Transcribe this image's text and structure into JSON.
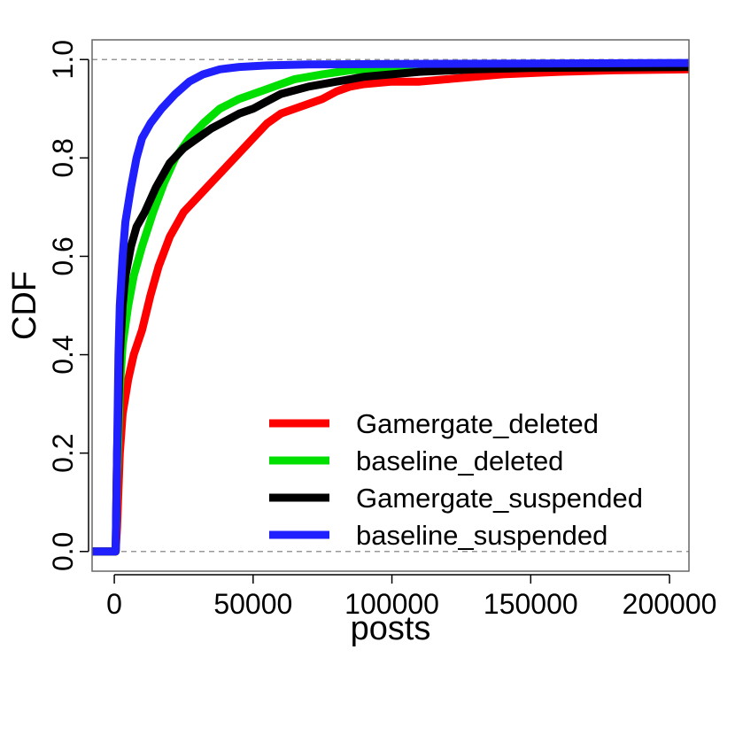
{
  "chart_data": {
    "type": "line",
    "title": "",
    "xlabel": "posts",
    "ylabel": "CDF",
    "xlim": [
      -8000,
      207000
    ],
    "ylim": [
      -0.04,
      1.04
    ],
    "xticks": [
      0,
      50000,
      100000,
      150000,
      200000
    ],
    "xtick_labels": [
      "0",
      "50000",
      "100000",
      "150000",
      "200000"
    ],
    "yticks": [
      0.0,
      0.2,
      0.4,
      0.6,
      0.8,
      1.0
    ],
    "ytick_labels": [
      "0.0",
      "0.2",
      "0.4",
      "0.6",
      "0.8",
      "1.0"
    ],
    "reference_lines": [
      0.0,
      1.0
    ],
    "grid": false,
    "legend_position": "bottom-right",
    "series": [
      {
        "name": "Gamergate_deleted",
        "color": "#ff0000",
        "points": [
          [
            -8000,
            0
          ],
          [
            0,
            0
          ],
          [
            500,
            0
          ],
          [
            1000,
            0.05
          ],
          [
            2000,
            0.2
          ],
          [
            3000,
            0.28
          ],
          [
            5000,
            0.35
          ],
          [
            7000,
            0.4
          ],
          [
            10000,
            0.45
          ],
          [
            13000,
            0.52
          ],
          [
            16000,
            0.58
          ],
          [
            20000,
            0.64
          ],
          [
            25000,
            0.69
          ],
          [
            30000,
            0.72
          ],
          [
            35000,
            0.75
          ],
          [
            40000,
            0.78
          ],
          [
            45000,
            0.81
          ],
          [
            50000,
            0.84
          ],
          [
            55000,
            0.87
          ],
          [
            60000,
            0.89
          ],
          [
            65000,
            0.9
          ],
          [
            70000,
            0.91
          ],
          [
            75000,
            0.92
          ],
          [
            80000,
            0.935
          ],
          [
            85000,
            0.945
          ],
          [
            90000,
            0.95
          ],
          [
            100000,
            0.955
          ],
          [
            110000,
            0.955
          ],
          [
            120000,
            0.96
          ],
          [
            130000,
            0.965
          ],
          [
            140000,
            0.97
          ],
          [
            160000,
            0.975
          ],
          [
            180000,
            0.978
          ],
          [
            207000,
            0.98
          ]
        ]
      },
      {
        "name": "baseline_deleted",
        "color": "#00e000",
        "points": [
          [
            -8000,
            0
          ],
          [
            0,
            0
          ],
          [
            500,
            0
          ],
          [
            1000,
            0.15
          ],
          [
            2000,
            0.33
          ],
          [
            3000,
            0.42
          ],
          [
            5000,
            0.5
          ],
          [
            7000,
            0.56
          ],
          [
            10000,
            0.62
          ],
          [
            14000,
            0.69
          ],
          [
            18000,
            0.75
          ],
          [
            22000,
            0.8
          ],
          [
            27000,
            0.84
          ],
          [
            32000,
            0.87
          ],
          [
            38000,
            0.9
          ],
          [
            45000,
            0.92
          ],
          [
            55000,
            0.94
          ],
          [
            65000,
            0.96
          ],
          [
            75000,
            0.97
          ],
          [
            85000,
            0.978
          ],
          [
            100000,
            0.983
          ],
          [
            130000,
            0.986
          ],
          [
            207000,
            0.988
          ]
        ]
      },
      {
        "name": "Gamergate_suspended",
        "color": "#000000",
        "points": [
          [
            -8000,
            0
          ],
          [
            0,
            0
          ],
          [
            500,
            0
          ],
          [
            1000,
            0.2
          ],
          [
            2000,
            0.4
          ],
          [
            3000,
            0.5
          ],
          [
            4000,
            0.56
          ],
          [
            6000,
            0.62
          ],
          [
            8000,
            0.66
          ],
          [
            11000,
            0.69
          ],
          [
            15000,
            0.74
          ],
          [
            20000,
            0.79
          ],
          [
            25000,
            0.82
          ],
          [
            30000,
            0.84
          ],
          [
            35000,
            0.86
          ],
          [
            40000,
            0.875
          ],
          [
            45000,
            0.89
          ],
          [
            50000,
            0.9
          ],
          [
            55000,
            0.915
          ],
          [
            60000,
            0.93
          ],
          [
            70000,
            0.945
          ],
          [
            80000,
            0.955
          ],
          [
            90000,
            0.965
          ],
          [
            100000,
            0.97
          ],
          [
            110000,
            0.975
          ],
          [
            130000,
            0.98
          ],
          [
            150000,
            0.983
          ],
          [
            207000,
            0.985
          ]
        ]
      },
      {
        "name": "baseline_suspended",
        "color": "#2020ff",
        "points": [
          [
            -8000,
            0
          ],
          [
            0,
            0
          ],
          [
            500,
            0
          ],
          [
            1000,
            0.2
          ],
          [
            1500,
            0.4
          ],
          [
            2000,
            0.5
          ],
          [
            3000,
            0.6
          ],
          [
            4000,
            0.67
          ],
          [
            6000,
            0.74
          ],
          [
            8000,
            0.8
          ],
          [
            10000,
            0.84
          ],
          [
            13000,
            0.87
          ],
          [
            17000,
            0.9
          ],
          [
            22000,
            0.93
          ],
          [
            27000,
            0.955
          ],
          [
            32000,
            0.97
          ],
          [
            38000,
            0.98
          ],
          [
            45000,
            0.985
          ],
          [
            55000,
            0.988
          ],
          [
            70000,
            0.99
          ],
          [
            100000,
            0.991
          ],
          [
            150000,
            0.992
          ],
          [
            207000,
            0.993
          ]
        ]
      }
    ]
  }
}
